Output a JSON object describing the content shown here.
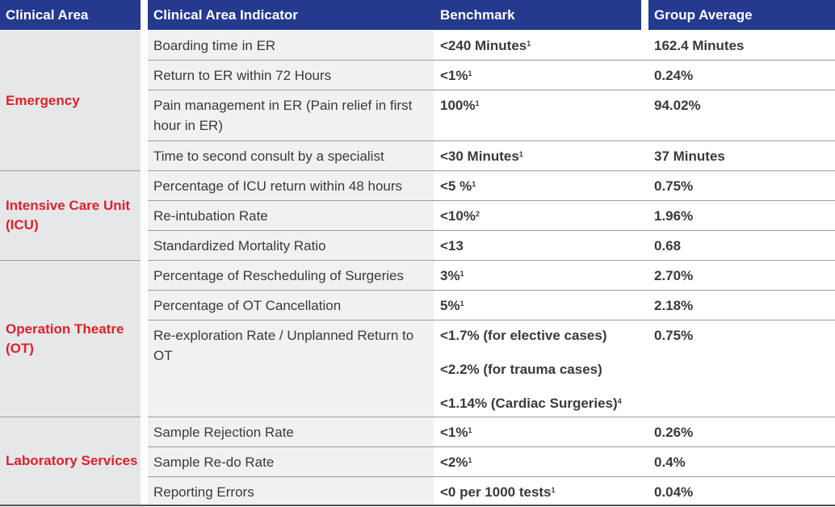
{
  "headers": {
    "area": "Clinical Area",
    "indicator": "Clinical Area Indicator",
    "benchmark": "Benchmark",
    "group_average": "Group Average"
  },
  "areas": [
    {
      "name": "Emergency"
    },
    {
      "name": "Intensive Care Unit (ICU)"
    },
    {
      "name": "Operation Theatre (OT)"
    },
    {
      "name": "Laboratory Services"
    }
  ],
  "rows": [
    {
      "indicator": "Boarding time in ER",
      "benchmark": "<240 Minutes",
      "sup": "1",
      "average": "162.4 Minutes"
    },
    {
      "indicator": "Return to ER within 72 Hours",
      "benchmark": "<1%",
      "sup": "1",
      "average": "0.24%"
    },
    {
      "indicator": "Pain management in ER (Pain relief in first hour in ER)",
      "benchmark": "100%",
      "sup": "1",
      "average": "94.02%"
    },
    {
      "indicator": "Time to second consult by a specialist",
      "benchmark": "<30 Minutes",
      "sup": "1",
      "average": "37 Minutes"
    },
    {
      "indicator": "Percentage of ICU return within 48 hours",
      "benchmark": "<5 %",
      "sup": "1",
      "average": "0.75%"
    },
    {
      "indicator": "Re-intubation Rate",
      "benchmark": "<10%",
      "sup": "2",
      "average": "1.96%"
    },
    {
      "indicator": "Standardized Mortality Ratio",
      "benchmark": "<13",
      "sup": "",
      "average": "0.68"
    },
    {
      "indicator": "Percentage of Rescheduling of Surgeries",
      "benchmark": "3%",
      "sup": "1",
      "average": "2.70%"
    },
    {
      "indicator": "Percentage of OT Cancellation",
      "benchmark": "5%",
      "sup": "1",
      "average": "2.18%"
    },
    {
      "indicator": "Re-exploration Rate / Unplanned Return to OT",
      "benchmark": "<1.7% (for elective cases)",
      "sup": "",
      "benchmark2": "<2.2% (for trauma cases)",
      "benchmark3": "<1.14% (Cardiac Surgeries)",
      "sup3": "4",
      "average": "0.75%"
    },
    {
      "indicator": "Sample Rejection Rate",
      "benchmark": "<1%",
      "sup": "1",
      "average": "0.26%"
    },
    {
      "indicator": "Sample Re-do Rate",
      "benchmark": "<2%",
      "sup": "1",
      "average": "0.4%"
    },
    {
      "indicator": "Reporting Errors",
      "benchmark": "<0 per 1000 tests",
      "sup": "1",
      "average": "0.04%"
    }
  ]
}
